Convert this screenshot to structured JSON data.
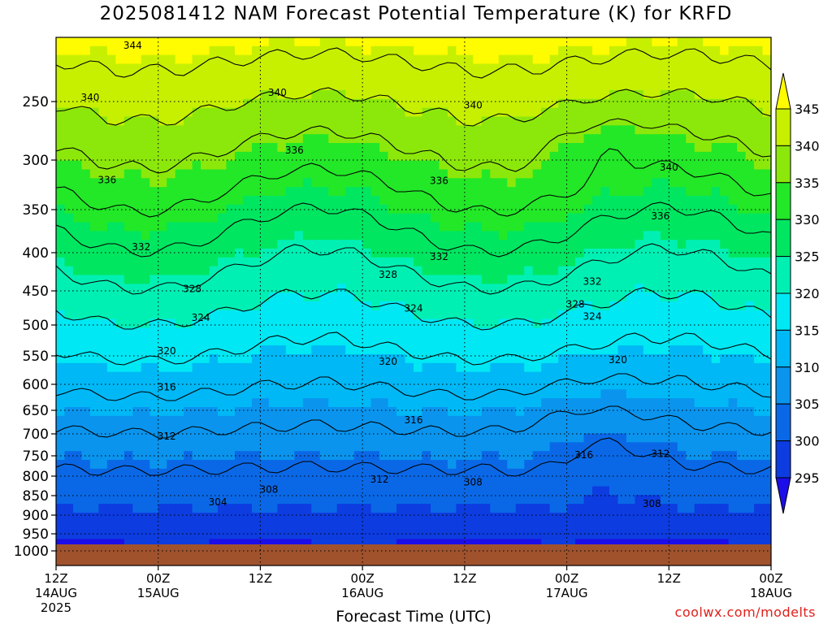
{
  "title": "2025081412 NAM Forecast Potential Temperature (K) for KRFD",
  "watermark": "coolwx.com/modelts",
  "chart_data": {
    "type": "heatmap",
    "title": "2025081412 NAM Forecast Potential Temperature (K) for KRFD",
    "xlabel": "Forecast Time (UTC)",
    "ylabel": "",
    "y_ticks": [
      250,
      300,
      350,
      400,
      450,
      500,
      550,
      600,
      650,
      700,
      750,
      800,
      850,
      900,
      950,
      1000
    ],
    "x_ticks": [
      {
        "hour": 0,
        "label": "12Z",
        "date": "14AUG",
        "year": "2025"
      },
      {
        "hour": 12,
        "label": "00Z",
        "date": "15AUG"
      },
      {
        "hour": 24,
        "label": "12Z",
        "date": ""
      },
      {
        "hour": 36,
        "label": "00Z",
        "date": "16AUG"
      },
      {
        "hour": 48,
        "label": "12Z",
        "date": ""
      },
      {
        "hour": 60,
        "label": "00Z",
        "date": "17AUG"
      },
      {
        "hour": 72,
        "label": "12Z",
        "date": ""
      },
      {
        "hour": 84,
        "label": "00Z",
        "date": "18AUG"
      }
    ],
    "grid": true,
    "colorbar": {
      "levels": [
        295,
        300,
        305,
        310,
        315,
        320,
        325,
        330,
        335,
        340,
        345
      ],
      "colors": [
        "#1c0ee8",
        "#0d3ce0",
        "#0a68e6",
        "#0a94ee",
        "#00b8f6",
        "#00e8f4",
        "#00f0b4",
        "#00e660",
        "#22e828",
        "#8ce80a",
        "#c6f000",
        "#fffb00"
      ],
      "extend": "both"
    },
    "contour_levels": [
      304,
      308,
      312,
      316,
      320,
      324,
      328,
      332,
      336,
      340,
      344
    ],
    "contour_labels": [
      {
        "value": "344",
        "hour": 9,
        "pressure": 210
      },
      {
        "value": "340",
        "hour": 4,
        "pressure": 247
      },
      {
        "value": "340",
        "hour": 26,
        "pressure": 243
      },
      {
        "value": "340",
        "hour": 49,
        "pressure": 253
      },
      {
        "value": "340",
        "hour": 72,
        "pressure": 307
      },
      {
        "value": "336",
        "hour": 28,
        "pressure": 291
      },
      {
        "value": "336",
        "hour": 6,
        "pressure": 319
      },
      {
        "value": "336",
        "hour": 45,
        "pressure": 320
      },
      {
        "value": "336",
        "hour": 71,
        "pressure": 357
      },
      {
        "value": "332",
        "hour": 10,
        "pressure": 393
      },
      {
        "value": "332",
        "hour": 45,
        "pressure": 405
      },
      {
        "value": "332",
        "hour": 63,
        "pressure": 437
      },
      {
        "value": "328",
        "hour": 16,
        "pressure": 447
      },
      {
        "value": "328",
        "hour": 39,
        "pressure": 428
      },
      {
        "value": "328",
        "hour": 61,
        "pressure": 469
      },
      {
        "value": "324",
        "hour": 17,
        "pressure": 489
      },
      {
        "value": "324",
        "hour": 42,
        "pressure": 475
      },
      {
        "value": "324",
        "hour": 63,
        "pressure": 487
      },
      {
        "value": "320",
        "hour": 13,
        "pressure": 542
      },
      {
        "value": "320",
        "hour": 39,
        "pressure": 560
      },
      {
        "value": "320",
        "hour": 66,
        "pressure": 557
      },
      {
        "value": "316",
        "hour": 13,
        "pressure": 605
      },
      {
        "value": "316",
        "hour": 42,
        "pressure": 670
      },
      {
        "value": "316",
        "hour": 62,
        "pressure": 748
      },
      {
        "value": "312",
        "hour": 13,
        "pressure": 705
      },
      {
        "value": "312",
        "hour": 38,
        "pressure": 808
      },
      {
        "value": "312",
        "hour": 71,
        "pressure": 745
      },
      {
        "value": "308",
        "hour": 25,
        "pressure": 834
      },
      {
        "value": "308",
        "hour": 49,
        "pressure": 815
      },
      {
        "value": "308",
        "hour": 70,
        "pressure": 870
      },
      {
        "value": "304",
        "hour": 19,
        "pressure": 866
      }
    ],
    "surface_fill_color": "#a0522d"
  }
}
